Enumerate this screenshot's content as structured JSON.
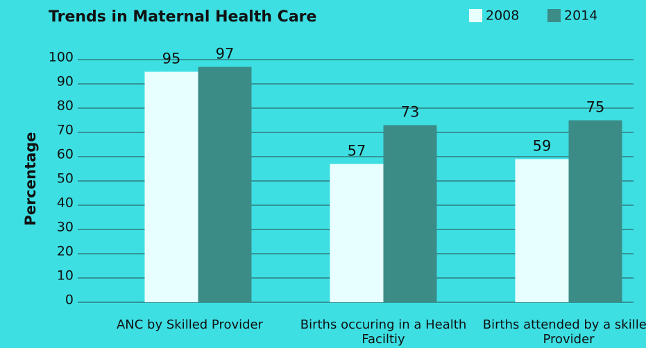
{
  "chart_data": {
    "type": "bar",
    "title": "Trends in Maternal Health Care",
    "y_label": "Percentage",
    "categories": [
      "ANC by Skilled Provider",
      "Births occuring in a Health Faciltiy",
      "Births attended by a skilled Provider"
    ],
    "series": [
      {
        "name": "2008",
        "color": "#e8ffff",
        "values": [
          95,
          57,
          59
        ]
      },
      {
        "name": "2014",
        "color": "#3b8c87",
        "values": [
          97,
          73,
          75
        ]
      }
    ],
    "ylim": [
      0,
      100
    ],
    "yticks": [
      0,
      10,
      20,
      30,
      40,
      50,
      60,
      70,
      80,
      90,
      100
    ],
    "grid": true,
    "legend": "top-right"
  }
}
